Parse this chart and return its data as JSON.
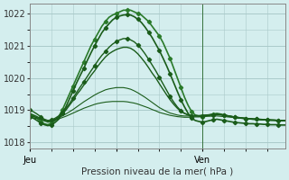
{
  "xlabel": "Pression niveau de la mer( hPa )",
  "background_color": "#d4eeee",
  "grid_color": "#aacaca",
  "line_color_dark": "#1a5c1a",
  "ylim": [
    1017.8,
    1022.3
  ],
  "yticks": [
    1018,
    1019,
    1020,
    1021,
    1022
  ],
  "xtick_labels": [
    "Jeu",
    "",
    "Ven"
  ],
  "xtick_positions": [
    0,
    24,
    48
  ],
  "vline_position": 48,
  "total_points": 72,
  "series": [
    {
      "y": [
        1018.85,
        1018.82,
        1018.75,
        1018.65,
        1018.58,
        1018.55,
        1018.6,
        1018.68,
        1018.8,
        1019.0,
        1019.25,
        1019.5,
        1019.75,
        1020.0,
        1020.25,
        1020.5,
        1020.75,
        1021.0,
        1021.2,
        1021.4,
        1021.6,
        1021.75,
        1021.88,
        1021.95,
        1022.0,
        1022.05,
        1022.1,
        1022.1,
        1022.1,
        1022.05,
        1022.0,
        1021.95,
        1021.85,
        1021.75,
        1021.6,
        1021.45,
        1021.3,
        1021.1,
        1020.85,
        1020.6,
        1020.3,
        1020.0,
        1019.7,
        1019.4,
        1019.15,
        1018.95,
        1018.85,
        1018.82,
        1018.8,
        1018.82,
        1018.85,
        1018.88,
        1018.9,
        1018.88,
        1018.85,
        1018.82,
        1018.8,
        1018.78,
        1018.76,
        1018.75,
        1018.74,
        1018.73,
        1018.72,
        1018.72,
        1018.71,
        1018.7,
        1018.7,
        1018.69,
        1018.69,
        1018.68,
        1018.68,
        1018.67
      ],
      "marker": true,
      "lw": 1.2,
      "color": "#2a7a2a"
    },
    {
      "y": [
        1018.8,
        1018.75,
        1018.68,
        1018.6,
        1018.55,
        1018.52,
        1018.55,
        1018.62,
        1018.72,
        1018.9,
        1019.1,
        1019.35,
        1019.6,
        1019.85,
        1020.08,
        1020.3,
        1020.55,
        1020.78,
        1021.0,
        1021.2,
        1021.4,
        1021.55,
        1021.68,
        1021.8,
        1021.88,
        1021.92,
        1021.95,
        1021.96,
        1021.95,
        1021.9,
        1021.82,
        1021.72,
        1021.58,
        1021.42,
        1021.25,
        1021.05,
        1020.85,
        1020.62,
        1020.38,
        1020.12,
        1019.85,
        1019.58,
        1019.32,
        1019.1,
        1018.9,
        1018.75,
        1018.68,
        1018.65,
        1018.63,
        1018.65,
        1018.68,
        1018.7,
        1018.72,
        1018.7,
        1018.68,
        1018.66,
        1018.64,
        1018.62,
        1018.61,
        1018.6,
        1018.59,
        1018.58,
        1018.58,
        1018.57,
        1018.57,
        1018.56,
        1018.56,
        1018.55,
        1018.55,
        1018.55,
        1018.54,
        1018.54
      ],
      "marker": true,
      "lw": 1.2,
      "color": "#1a5c1a"
    },
    {
      "y": [
        1019.0,
        1018.95,
        1018.88,
        1018.8,
        1018.72,
        1018.68,
        1018.7,
        1018.75,
        1018.82,
        1018.92,
        1019.05,
        1019.2,
        1019.38,
        1019.55,
        1019.72,
        1019.88,
        1020.05,
        1020.22,
        1020.38,
        1020.55,
        1020.7,
        1020.82,
        1020.95,
        1021.05,
        1021.12,
        1021.18,
        1021.22,
        1021.22,
        1021.18,
        1021.12,
        1021.02,
        1020.9,
        1020.75,
        1020.58,
        1020.4,
        1020.22,
        1020.02,
        1019.82,
        1019.62,
        1019.42,
        1019.25,
        1019.1,
        1018.98,
        1018.9,
        1018.85,
        1018.82,
        1018.82,
        1018.82,
        1018.82,
        1018.83,
        1018.84,
        1018.85,
        1018.86,
        1018.85,
        1018.84,
        1018.82,
        1018.8,
        1018.78,
        1018.76,
        1018.75,
        1018.74,
        1018.73,
        1018.72,
        1018.72,
        1018.71,
        1018.7,
        1018.7,
        1018.69,
        1018.69,
        1018.68,
        1018.68,
        1018.67
      ],
      "marker": true,
      "lw": 1.0,
      "color": "#1a5c1a"
    },
    {
      "y": [
        1018.9,
        1018.85,
        1018.8,
        1018.73,
        1018.67,
        1018.63,
        1018.65,
        1018.7,
        1018.78,
        1018.88,
        1019.0,
        1019.15,
        1019.3,
        1019.48,
        1019.62,
        1019.78,
        1019.92,
        1020.08,
        1020.22,
        1020.38,
        1020.52,
        1020.65,
        1020.75,
        1020.82,
        1020.88,
        1020.92,
        1020.95,
        1020.95,
        1020.92,
        1020.85,
        1020.75,
        1020.62,
        1020.48,
        1020.32,
        1020.15,
        1020.0,
        1019.82,
        1019.65,
        1019.48,
        1019.32,
        1019.18,
        1019.06,
        1018.96,
        1018.9,
        1018.86,
        1018.84,
        1018.83,
        1018.83,
        1018.84,
        1018.85,
        1018.86,
        1018.87,
        1018.88,
        1018.87,
        1018.85,
        1018.83,
        1018.81,
        1018.79,
        1018.77,
        1018.76,
        1018.75,
        1018.74,
        1018.73,
        1018.72,
        1018.72,
        1018.71,
        1018.7,
        1018.7,
        1018.69,
        1018.69,
        1018.68,
        1018.68
      ],
      "marker": false,
      "lw": 1.0,
      "color": "#1a5c1a"
    },
    {
      "y": [
        1018.82,
        1018.8,
        1018.77,
        1018.73,
        1018.7,
        1018.68,
        1018.69,
        1018.72,
        1018.76,
        1018.82,
        1018.88,
        1018.95,
        1019.02,
        1019.1,
        1019.18,
        1019.26,
        1019.33,
        1019.4,
        1019.47,
        1019.53,
        1019.58,
        1019.63,
        1019.66,
        1019.68,
        1019.7,
        1019.7,
        1019.7,
        1019.68,
        1019.65,
        1019.6,
        1019.54,
        1019.47,
        1019.4,
        1019.32,
        1019.24,
        1019.16,
        1019.08,
        1019.02,
        1018.96,
        1018.91,
        1018.88,
        1018.85,
        1018.83,
        1018.82,
        1018.82,
        1018.82,
        1018.82,
        1018.83,
        1018.84,
        1018.85,
        1018.86,
        1018.87,
        1018.87,
        1018.86,
        1018.85,
        1018.83,
        1018.81,
        1018.79,
        1018.78,
        1018.76,
        1018.75,
        1018.74,
        1018.73,
        1018.72,
        1018.71,
        1018.7,
        1018.7,
        1018.69,
        1018.69,
        1018.68,
        1018.67,
        1018.67
      ],
      "marker": false,
      "lw": 0.8,
      "color": "#1a5c1a"
    },
    {
      "y": [
        1018.78,
        1018.76,
        1018.74,
        1018.71,
        1018.69,
        1018.67,
        1018.68,
        1018.7,
        1018.73,
        1018.77,
        1018.81,
        1018.86,
        1018.91,
        1018.96,
        1019.01,
        1019.06,
        1019.1,
        1019.14,
        1019.18,
        1019.21,
        1019.23,
        1019.25,
        1019.26,
        1019.27,
        1019.27,
        1019.27,
        1019.27,
        1019.26,
        1019.24,
        1019.22,
        1019.19,
        1019.15,
        1019.11,
        1019.07,
        1019.02,
        1018.98,
        1018.93,
        1018.9,
        1018.87,
        1018.84,
        1018.82,
        1018.8,
        1018.79,
        1018.78,
        1018.78,
        1018.78,
        1018.79,
        1018.79,
        1018.8,
        1018.81,
        1018.81,
        1018.82,
        1018.82,
        1018.81,
        1018.8,
        1018.79,
        1018.78,
        1018.77,
        1018.76,
        1018.75,
        1018.74,
        1018.73,
        1018.72,
        1018.71,
        1018.71,
        1018.7,
        1018.7,
        1018.69,
        1018.69,
        1018.68,
        1018.67,
        1018.67
      ],
      "marker": false,
      "lw": 0.8,
      "color": "#1a5c1a"
    }
  ]
}
